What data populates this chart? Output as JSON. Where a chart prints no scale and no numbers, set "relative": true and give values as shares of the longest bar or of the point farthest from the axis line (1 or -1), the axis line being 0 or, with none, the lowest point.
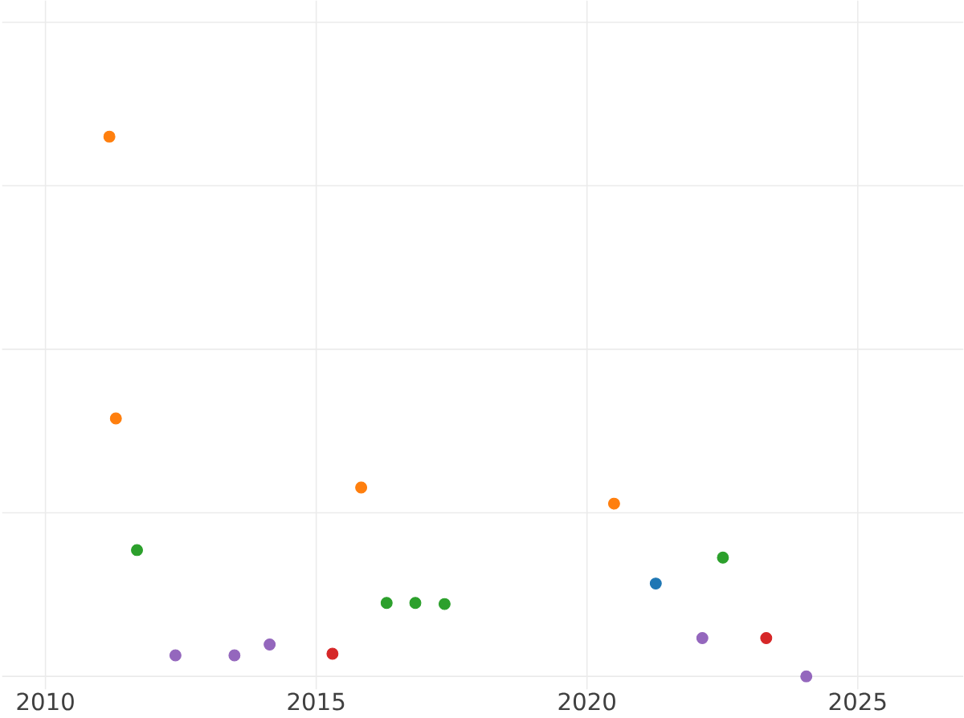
{
  "chart_data": {
    "type": "scatter",
    "relative": true,
    "grid": true,
    "marker": "circle",
    "xlim": [
      2009.2,
      2026.95
    ],
    "xticks": [
      2010,
      2015,
      2020,
      2025
    ],
    "series": [
      {
        "color": "#ff7f0e",
        "x": [
          2011.18,
          2011.3,
          2015.83,
          2020.5
        ],
        "values": [
          1,
          0.478,
          0.35,
          0.32
        ]
      },
      {
        "color": "#2ca02c",
        "x": [
          2011.69,
          2016.3,
          2016.83,
          2017.37,
          2022.51
        ],
        "values": [
          0.234,
          0.136,
          0.136,
          0.134,
          0.22
        ]
      },
      {
        "color": "#9467bd",
        "x": [
          2012.4,
          2013.49,
          2014.14,
          2022.13,
          2024.05
        ],
        "values": [
          0.039,
          0.039,
          0.059,
          0.071,
          0
        ]
      },
      {
        "color": "#d62728",
        "x": [
          2015.3,
          2023.31
        ],
        "values": [
          0.042,
          0.071
        ]
      },
      {
        "color": "#1f77b4",
        "x": [
          2021.27
        ],
        "values": [
          0.172
        ]
      }
    ]
  }
}
